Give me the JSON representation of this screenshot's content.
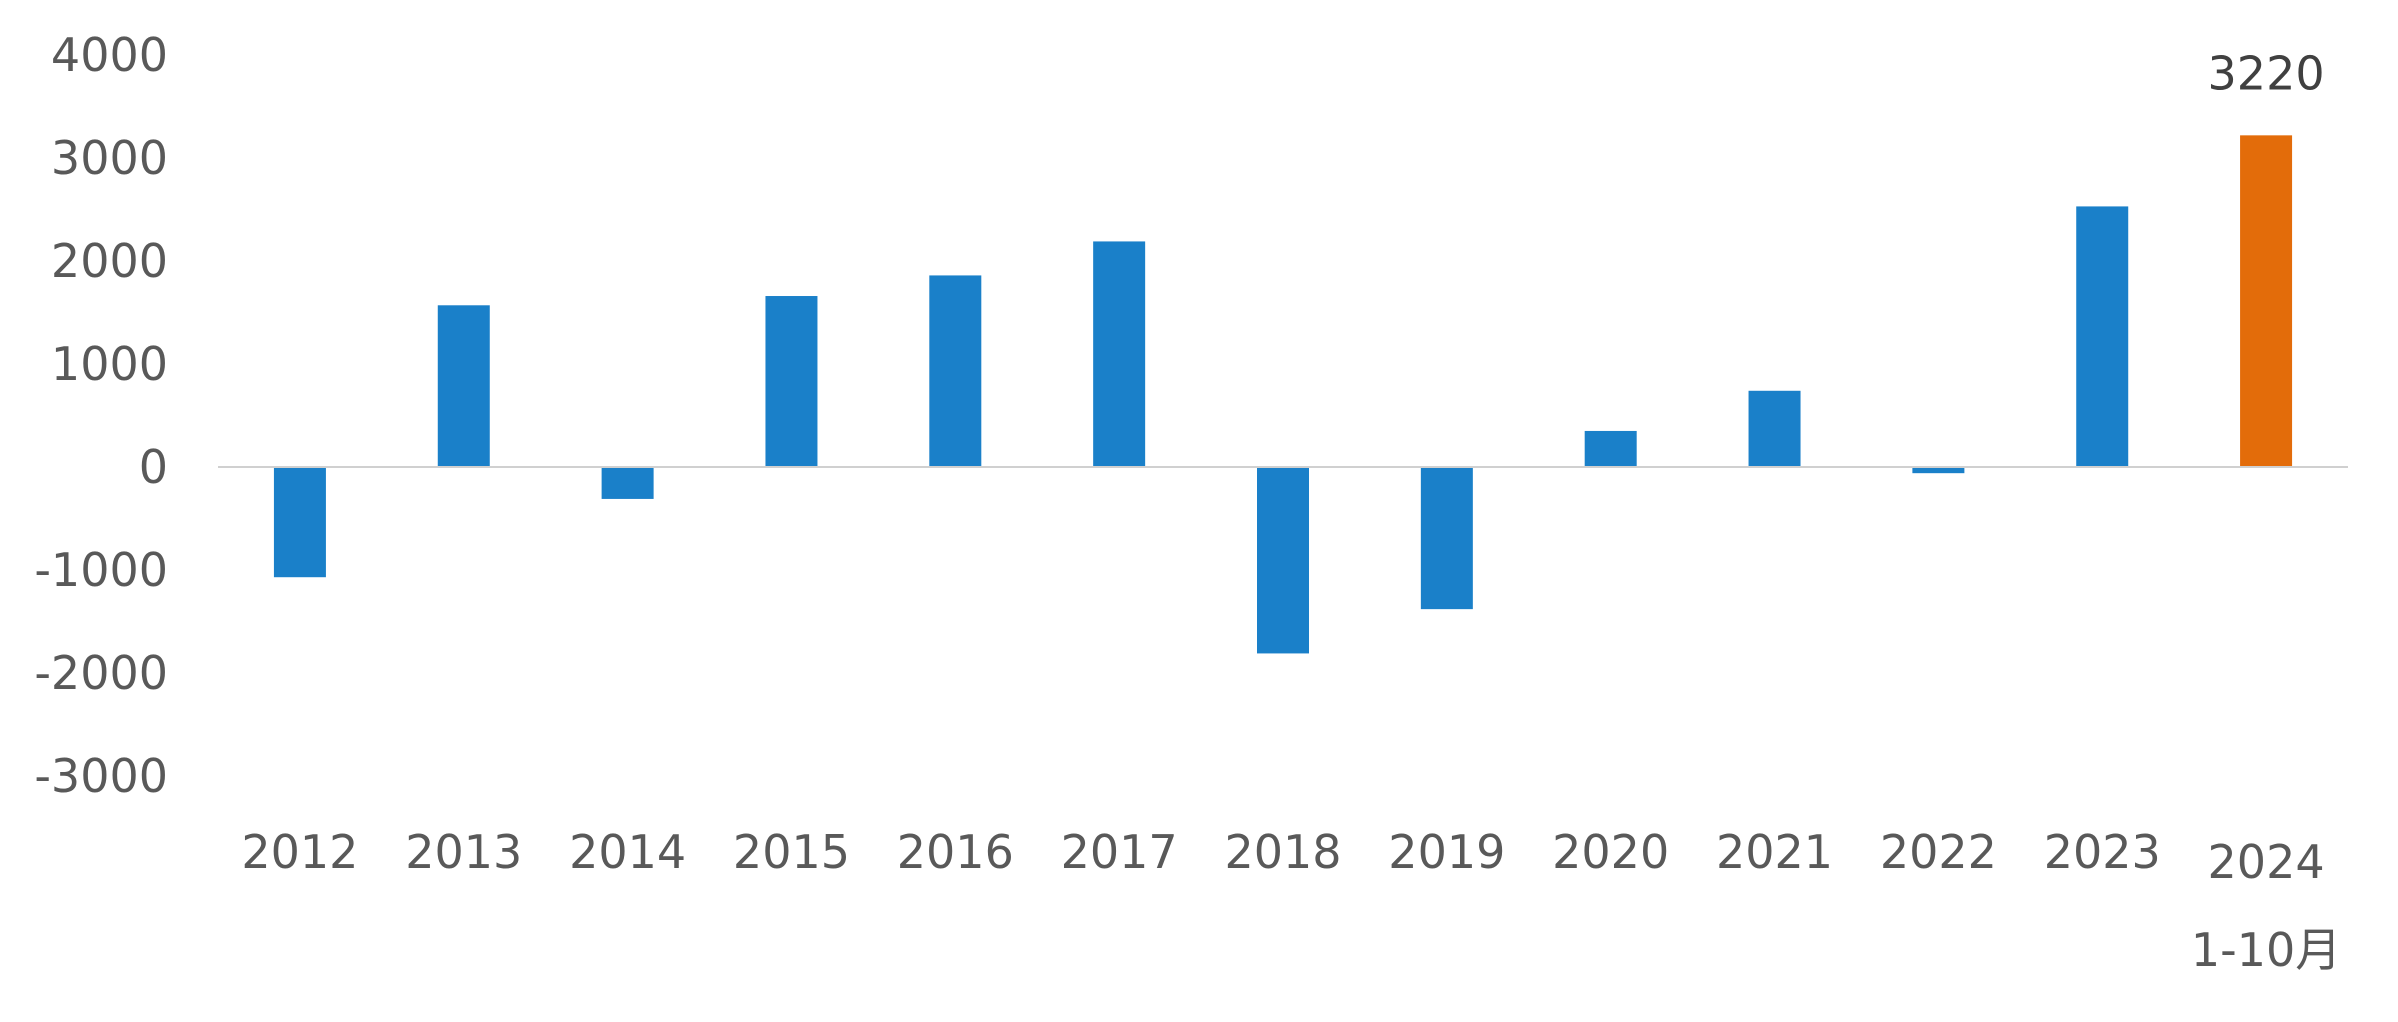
{
  "chart_data": {
    "type": "bar",
    "categories": [
      "2012",
      "2013",
      "2014",
      "2015",
      "2016",
      "2017",
      "2018",
      "2019",
      "2020",
      "2021",
      "2022",
      "2023",
      "2024"
    ],
    "category_sublabels": [
      "",
      "",
      "",
      "",
      "",
      "",
      "",
      "",
      "",
      "",
      "",
      "",
      "1-10月"
    ],
    "values": [
      -1070,
      1570,
      -310,
      1660,
      1860,
      2190,
      -1810,
      -1380,
      350,
      740,
      -60,
      2530,
      3220
    ],
    "bar_colors": [
      "#1a80c9",
      "#1a80c9",
      "#1a80c9",
      "#1a80c9",
      "#1a80c9",
      "#1a80c9",
      "#1a80c9",
      "#1a80c9",
      "#1a80c9",
      "#1a80c9",
      "#1a80c9",
      "#1a80c9",
      "#e36c0a"
    ],
    "data_labels": [
      null,
      null,
      null,
      null,
      null,
      null,
      null,
      null,
      null,
      null,
      null,
      null,
      "3220"
    ],
    "yticks": [
      "4000",
      "3000",
      "2000",
      "1000",
      "0",
      "-1000",
      "-2000",
      "-3000"
    ],
    "ytick_values": [
      4000,
      3000,
      2000,
      1000,
      0,
      -1000,
      -2000,
      -3000
    ],
    "ylim": [
      -3000,
      4000
    ],
    "title": "",
    "xlabel": "",
    "ylabel": "",
    "grid": false,
    "legend": "none",
    "colors": {
      "primary_bar": "#1a80c9",
      "highlight_bar": "#e36c0a",
      "axis_line": "#d0d0d0",
      "tick_text": "#595959"
    }
  }
}
